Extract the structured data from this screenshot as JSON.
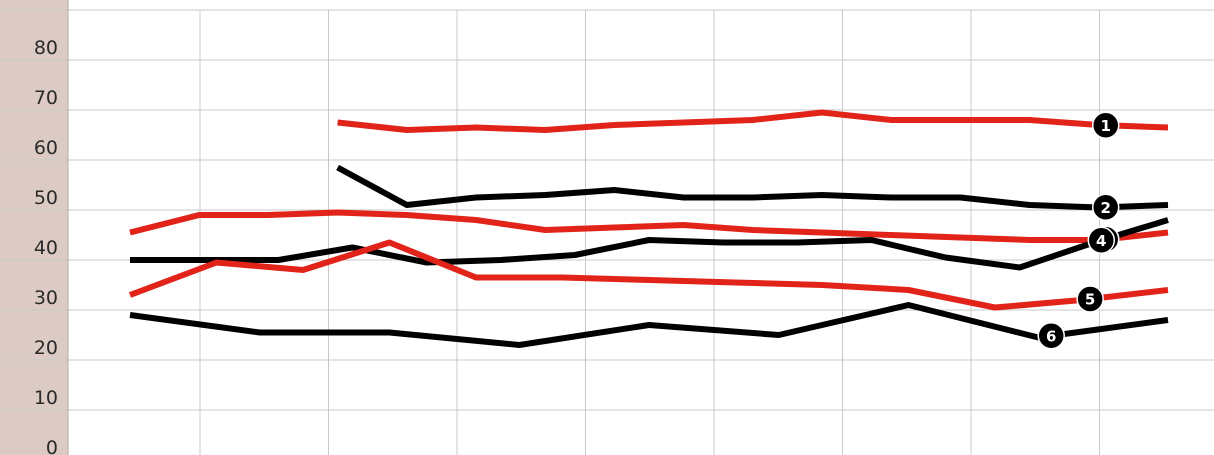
{
  "chart_data": {
    "type": "line",
    "title": "",
    "xlabel": "",
    "ylabel": "",
    "ylim": [
      0,
      80
    ],
    "y_ticks": [
      "80",
      "70",
      "60",
      "50",
      "40",
      "30",
      "20",
      "10",
      "0"
    ],
    "x_gridlines": 9,
    "grid": true,
    "colors": {
      "red": "#e2231a",
      "black": "#000000",
      "axis_band": "#dccbc4",
      "grid": "#c8c8c8"
    },
    "series": [
      {
        "marker": "1",
        "color": "#e2231a",
        "start": 3,
        "values": [
          67.5,
          66,
          66.5,
          66,
          67,
          67.5,
          68,
          69.5,
          68,
          68,
          68,
          67,
          66.5
        ]
      },
      {
        "marker": "2",
        "color": "#000000",
        "start": 3,
        "values": [
          58.5,
          51,
          52.5,
          53,
          54,
          52.5,
          52.5,
          53,
          52.5,
          52.5,
          51,
          50.5,
          51
        ]
      },
      {
        "marker": "3",
        "color": "#e2231a",
        "start": 0,
        "values": [
          45.5,
          49,
          49,
          49.5,
          49,
          48,
          46,
          46.5,
          47,
          46,
          45.5,
          45,
          44.5,
          44,
          44,
          45.5
        ]
      },
      {
        "marker": "4",
        "color": "#000000",
        "start": 0,
        "values": [
          40,
          40,
          40,
          42.5,
          39.5,
          40,
          41,
          44,
          43.5,
          43.5,
          44,
          40.5,
          38.5,
          43.5,
          48
        ]
      },
      {
        "marker": "5",
        "color": "#e2231a",
        "start": 0,
        "values": [
          33,
          39.5,
          38,
          43.5,
          36.5,
          36.5,
          36,
          35.5,
          35,
          34,
          30.5,
          32,
          34
        ]
      },
      {
        "marker": "6",
        "color": "#000000",
        "start": 0,
        "values": [
          29,
          25.5,
          25.5,
          23,
          27,
          25,
          31,
          24.5,
          28
        ]
      }
    ]
  }
}
